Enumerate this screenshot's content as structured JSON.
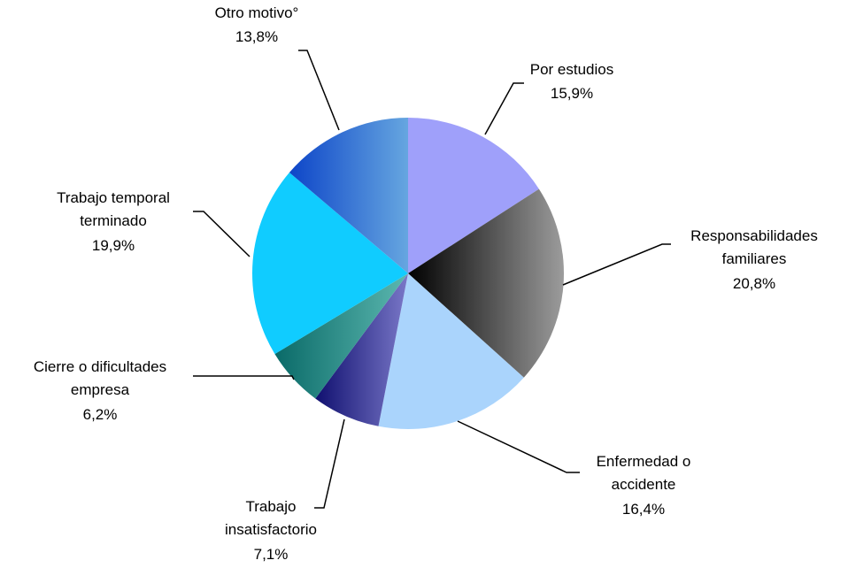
{
  "chart_data": {
    "type": "pie",
    "categories": [
      [
        "Por estudios"
      ],
      [
        "Responsabilidades",
        "familiares"
      ],
      [
        "Enfermedad o",
        "accidente"
      ],
      [
        "Trabajo",
        "insatisfactorio"
      ],
      [
        "Cierre o dificultades",
        "empresa"
      ],
      [
        "Trabajo temporal",
        "terminado"
      ],
      [
        "Otro motivo°"
      ]
    ],
    "values": [
      15.9,
      20.8,
      16.4,
      7.1,
      6.2,
      19.9,
      13.8
    ],
    "value_labels": [
      "15,9%",
      "20,8%",
      "16,4%",
      "7,1%",
      "6,2%",
      "19,9%",
      "13,8%"
    ],
    "colors": [
      [
        "#9fa0fa",
        "#9fa0fa"
      ],
      [
        "#000000",
        "#9c9c9c"
      ],
      [
        "#aad4fc",
        "#aad4fc"
      ],
      [
        "#101070",
        "#7a78c8"
      ],
      [
        "#0a6a68",
        "#5cb8b0"
      ],
      [
        "#10ccff",
        "#10ccff"
      ],
      [
        "#0d45c8",
        "#66a6e0"
      ]
    ]
  }
}
